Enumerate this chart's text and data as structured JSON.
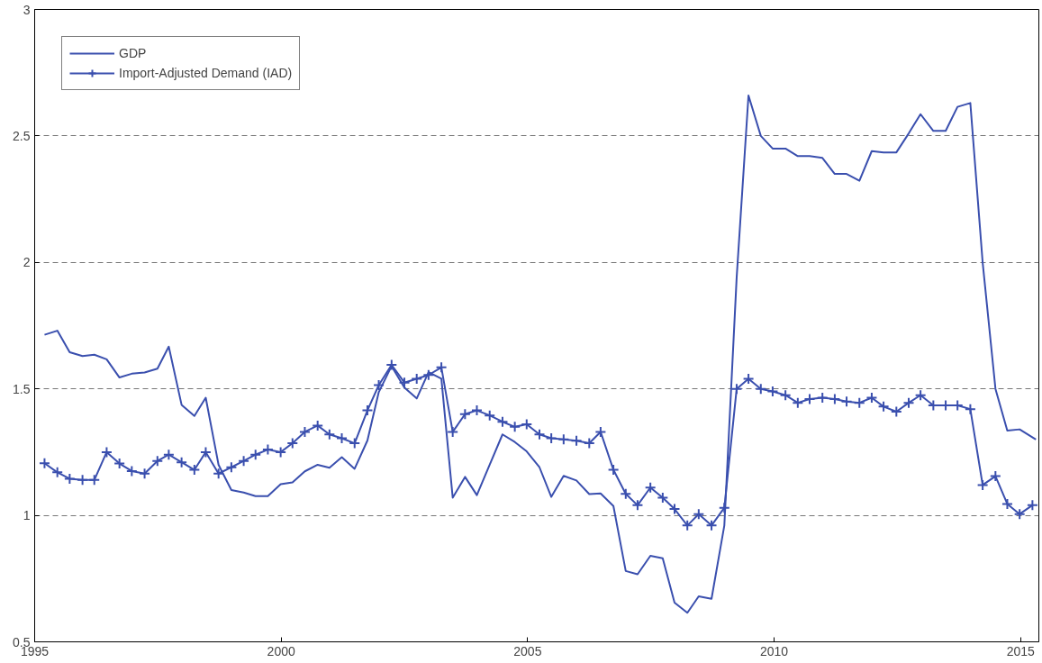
{
  "chart_data": {
    "type": "line",
    "xlim": [
      1995,
      2015.37
    ],
    "xticks": [
      1995,
      2000,
      2005,
      2010,
      2015
    ],
    "ylim": [
      0.5,
      3
    ],
    "yticks": [
      0.5,
      1,
      1.5,
      2,
      2.5,
      3
    ],
    "grid": "y",
    "legend": "top left",
    "series": [
      {
        "name": "GDP",
        "color": "#3a4fae",
        "marker": "none",
        "x": [
          1995.2,
          1995.46,
          1995.71,
          1995.97,
          1996.21,
          1996.46,
          1996.72,
          1996.97,
          1997.23,
          1997.49,
          1997.72,
          1997.98,
          1998.24,
          1998.47,
          1998.73,
          1998.99,
          1999.24,
          1999.48,
          1999.73,
          1999.99,
          2000.23,
          2000.48,
          2000.74,
          2000.98,
          2001.23,
          2001.49,
          2001.75,
          2001.98,
          2002.24,
          2002.5,
          2002.75,
          2002.99,
          2003.25,
          2003.48,
          2003.73,
          2003.97,
          2004.23,
          2004.49,
          2004.74,
          2004.98,
          2005.24,
          2005.48,
          2005.73,
          2005.99,
          2006.25,
          2006.48,
          2006.74,
          2006.99,
          2007.23,
          2007.49,
          2007.74,
          2007.98,
          2008.24,
          2008.47,
          2008.73,
          2008.99,
          2009.24,
          2009.48,
          2009.73,
          2009.97,
          2010.23,
          2010.48,
          2010.72,
          2010.98,
          2011.23,
          2011.47,
          2011.73,
          2011.98,
          2012.22,
          2012.48,
          2012.73,
          2012.97,
          2013.23,
          2013.48,
          2013.72,
          2013.98,
          2014.23,
          2014.49,
          2014.73,
          2014.98,
          2015.31
        ],
        "values": [
          1.714,
          1.73,
          1.645,
          1.63,
          1.635,
          1.617,
          1.545,
          1.56,
          1.565,
          1.58,
          1.667,
          1.437,
          1.393,
          1.465,
          1.2,
          1.1,
          1.09,
          1.076,
          1.076,
          1.123,
          1.13,
          1.174,
          1.2,
          1.188,
          1.23,
          1.184,
          1.296,
          1.487,
          1.59,
          1.505,
          1.462,
          1.566,
          1.54,
          1.07,
          1.152,
          1.08,
          1.2,
          1.32,
          1.29,
          1.253,
          1.19,
          1.073,
          1.156,
          1.138,
          1.084,
          1.087,
          1.037,
          0.78,
          0.767,
          0.84,
          0.83,
          0.655,
          0.615,
          0.68,
          0.67,
          0.96,
          1.94,
          2.66,
          2.5,
          2.45,
          2.45,
          2.42,
          2.42,
          2.413,
          2.35,
          2.35,
          2.323,
          2.44,
          2.435,
          2.435,
          2.51,
          2.586,
          2.52,
          2.52,
          2.615,
          2.63,
          2.0,
          1.5,
          1.335,
          1.34,
          1.3
        ]
      },
      {
        "name": "Import-Adjusted Demand (IAD)",
        "color": "#3a4fae",
        "marker": "cross",
        "x": [
          1995.2,
          1995.46,
          1995.71,
          1995.97,
          1996.21,
          1996.46,
          1996.72,
          1996.97,
          1997.23,
          1997.49,
          1997.72,
          1997.98,
          1998.24,
          1998.47,
          1998.73,
          1998.99,
          1999.24,
          1999.48,
          1999.73,
          1999.99,
          2000.23,
          2000.48,
          2000.74,
          2000.98,
          2001.23,
          2001.49,
          2001.75,
          2001.98,
          2002.24,
          2002.5,
          2002.75,
          2002.99,
          2003.25,
          2003.48,
          2003.73,
          2003.97,
          2004.23,
          2004.49,
          2004.74,
          2004.98,
          2005.24,
          2005.48,
          2005.73,
          2005.99,
          2006.25,
          2006.48,
          2006.74,
          2006.99,
          2007.23,
          2007.49,
          2007.74,
          2007.98,
          2008.24,
          2008.47,
          2008.73,
          2008.99,
          2009.24,
          2009.48,
          2009.73,
          2009.97,
          2010.23,
          2010.48,
          2010.72,
          2010.98,
          2011.23,
          2011.47,
          2011.73,
          2011.98,
          2012.22,
          2012.48,
          2012.73,
          2012.97,
          2013.23,
          2013.48,
          2013.72,
          2013.98,
          2014.23,
          2014.49,
          2014.73,
          2014.98,
          2015.24
        ],
        "values": [
          1.206,
          1.17,
          1.145,
          1.14,
          1.14,
          1.25,
          1.205,
          1.175,
          1.165,
          1.215,
          1.24,
          1.21,
          1.18,
          1.25,
          1.165,
          1.19,
          1.215,
          1.24,
          1.26,
          1.25,
          1.285,
          1.33,
          1.355,
          1.32,
          1.305,
          1.285,
          1.415,
          1.515,
          1.595,
          1.525,
          1.54,
          1.555,
          1.585,
          1.33,
          1.4,
          1.415,
          1.395,
          1.37,
          1.35,
          1.36,
          1.32,
          1.305,
          1.3,
          1.295,
          1.285,
          1.33,
          1.18,
          1.085,
          1.04,
          1.11,
          1.07,
          1.025,
          0.96,
          1.005,
          0.96,
          1.03,
          1.5,
          1.54,
          1.5,
          1.49,
          1.475,
          1.445,
          1.46,
          1.465,
          1.46,
          1.45,
          1.445,
          1.465,
          1.43,
          1.41,
          1.445,
          1.475,
          1.435,
          1.435,
          1.435,
          1.42,
          1.12,
          1.155,
          1.045,
          1.005,
          1.04
        ]
      }
    ]
  }
}
